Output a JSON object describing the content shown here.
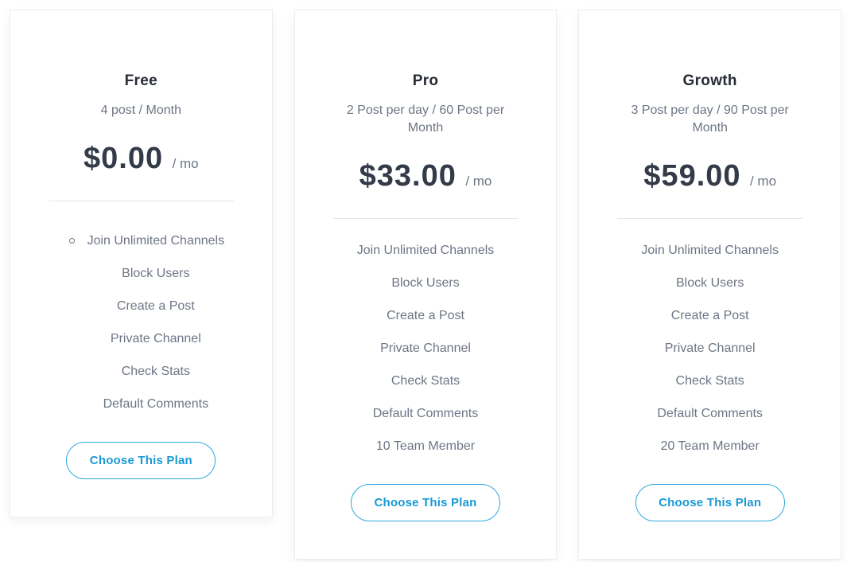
{
  "pricing": {
    "cta_label": "Choose This Plan",
    "colors": {
      "accent_text": "#1899d5",
      "accent_border": "#2ea9dc",
      "title": "#262b36",
      "body_text": "#6d7585",
      "price": "#333a48",
      "divider": "#e7e7e7",
      "card_background": "#ffffff"
    },
    "plans": [
      {
        "name": "Free",
        "subtitle": "4 post / Month",
        "price": "$0.00",
        "period": "/ mo",
        "features": [
          "Join Unlimited Channels",
          "Block Users",
          "Create a Post",
          "Private Channel",
          "Check Stats",
          "Default Comments"
        ]
      },
      {
        "name": "Pro",
        "subtitle": "2 Post per day / 60 Post per Month",
        "price": "$33.00",
        "period": "/ mo",
        "features": [
          "Join Unlimited Channels",
          "Block Users",
          "Create a Post",
          "Private Channel",
          "Check Stats",
          "Default Comments",
          "10 Team Member"
        ]
      },
      {
        "name": "Growth",
        "subtitle": "3 Post per day / 90 Post per Month",
        "price": "$59.00",
        "period": "/ mo",
        "features": [
          "Join Unlimited Channels",
          "Block Users",
          "Create a Post",
          "Private Channel",
          "Check Stats",
          "Default Comments",
          "20 Team Member"
        ]
      }
    ]
  }
}
